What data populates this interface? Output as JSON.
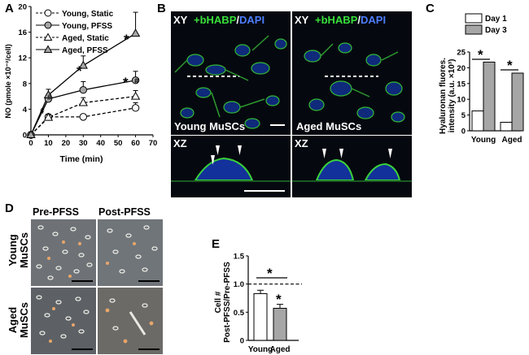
{
  "panels": {
    "A": "A",
    "B": "B",
    "C": "C",
    "D": "D",
    "E": "E"
  },
  "panelA": {
    "legend": [
      "Young, Static",
      "Young, PFSS",
      "Aged, Static",
      "Aged, PFSS"
    ],
    "ylabel": "NO (pmole ×10⁻²/cell)",
    "xlabel": "Time (min)",
    "xticks": [
      "0",
      "10",
      "20",
      "30",
      "40",
      "50",
      "60",
      "70"
    ],
    "yticks": [
      "0",
      "4",
      "8",
      "12",
      "16",
      "20"
    ],
    "annotations": [
      "#",
      "#",
      "*",
      "*",
      "#",
      "*"
    ]
  },
  "panelB": {
    "tl_xy": "XY",
    "marker_green": "+bHABP",
    "marker_sep": "/",
    "marker_blue": "DAPI",
    "young_label": "Young MuSCs",
    "aged_label": "Aged MuSCs",
    "xz": "XZ"
  },
  "panelC": {
    "legend": [
      "Day 1",
      "Day 3"
    ],
    "ylabel_line1": "Hyaluronan fluores.",
    "ylabel_line2": "intensity (a.u. ×10³)",
    "categories": [
      "Young",
      "Aged"
    ],
    "yticks": [
      "0",
      "5",
      "10",
      "15",
      "20",
      "25"
    ],
    "sig": "*"
  },
  "panelD": {
    "col1": "Pre-PFSS",
    "col2": "Post-PFSS",
    "row1_line1": "Young",
    "row1_line2": "MuSCs",
    "row2_line1": "Aged",
    "row2_line2": "MuSCs"
  },
  "panelE": {
    "ylabel_line1": "Cell #",
    "ylabel_line2": "Post-PFSS/Pre-PFSS",
    "categories": [
      "Young",
      "Aged"
    ],
    "yticks": [
      "0",
      "0.5",
      "1.0",
      "1.5"
    ],
    "sig": "*"
  },
  "chart_data": [
    {
      "type": "line",
      "panel": "A",
      "xlabel": "Time (min)",
      "ylabel": "NO (pmole ×10⁻²/cell)",
      "xlim": [
        0,
        70
      ],
      "ylim": [
        0,
        20
      ],
      "x": [
        0,
        10,
        30,
        60
      ],
      "series": [
        {
          "name": "Young, Static",
          "values": [
            0,
            2.8,
            2.8,
            4.2
          ],
          "errors": [
            0,
            0.4,
            0.4,
            0.8
          ],
          "marker": "circle",
          "fill": "#ffffff",
          "dash": "dashed"
        },
        {
          "name": "Young, PFSS",
          "values": [
            0,
            5.6,
            7.0,
            8.5
          ],
          "errors": [
            0,
            0.7,
            1.3,
            1.4
          ],
          "marker": "circle",
          "fill": "#a6a6a6",
          "dash": "solid"
        },
        {
          "name": "Aged, Static",
          "values": [
            0,
            2.7,
            5.0,
            6.0
          ],
          "errors": [
            0,
            0.4,
            0.8,
            0.9
          ],
          "marker": "triangle",
          "fill": "#ffffff",
          "dash": "dashed"
        },
        {
          "name": "Aged, PFSS",
          "values": [
            0,
            6.2,
            10.8,
            15.8
          ],
          "errors": [
            0,
            0.9,
            1.5,
            3.3
          ],
          "marker": "triangle",
          "fill": "#a6a6a6",
          "dash": "solid"
        }
      ]
    },
    {
      "type": "bar",
      "panel": "C",
      "categories": [
        "Young",
        "Aged"
      ],
      "ylim": [
        0,
        25
      ],
      "series": [
        {
          "name": "Day 1",
          "values": [
            6.3,
            2.7
          ],
          "color": "#ffffff"
        },
        {
          "name": "Day 3",
          "values": [
            21.8,
            18.3
          ],
          "color": "#a6a6a6"
        }
      ]
    },
    {
      "type": "bar",
      "panel": "E",
      "categories": [
        "Young",
        "Aged"
      ],
      "ylim": [
        0,
        1.5
      ],
      "values": [
        0.83,
        0.57
      ],
      "errors": [
        0.06,
        0.07
      ],
      "colors": [
        "#ffffff",
        "#a6a6a6"
      ],
      "reference_line": 1.0
    }
  ]
}
